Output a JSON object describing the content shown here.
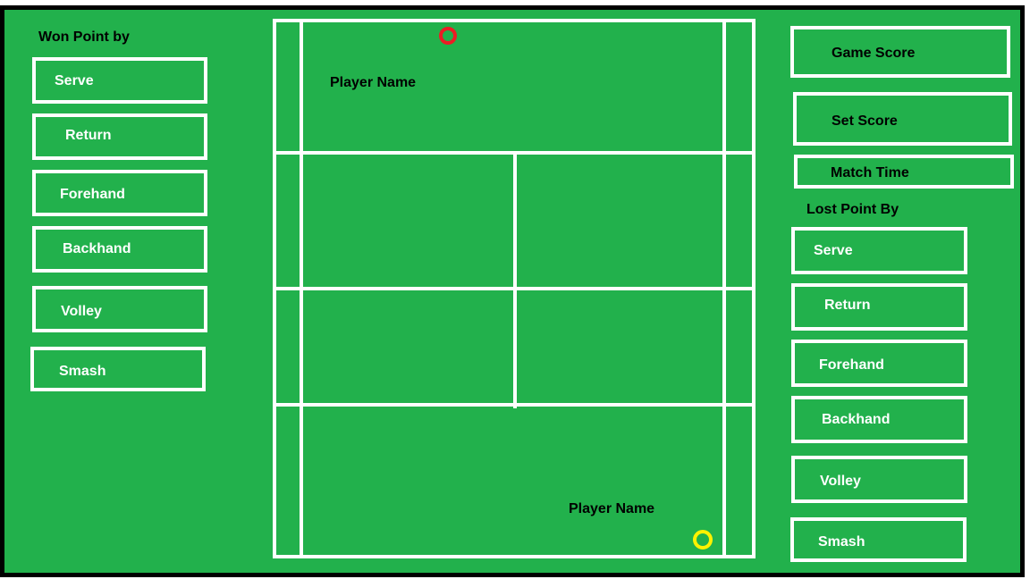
{
  "colors": {
    "court_green": "#22b14c",
    "lines": "#ffffff",
    "frame_border": "#000000",
    "player_top_marker": "#ed1c24",
    "player_bottom_marker": "#fff200"
  },
  "won_panel": {
    "heading": "Won Point by",
    "buttons": [
      "Serve",
      "Return",
      "Forehand",
      "Backhand",
      "Volley",
      "Smash"
    ]
  },
  "court": {
    "player_top": {
      "name": "Player Name",
      "marker_icon": "ball-ring-red"
    },
    "player_bottom": {
      "name": "Player Name",
      "marker_icon": "ball-ring-yellow"
    }
  },
  "score_panel": {
    "game_score": "Game Score",
    "set_score": "Set Score",
    "match_time": "Match Time"
  },
  "lost_panel": {
    "heading": "Lost Point By",
    "buttons": [
      "Serve",
      "Return",
      "Forehand",
      "Backhand",
      "Volley",
      "Smash"
    ]
  }
}
